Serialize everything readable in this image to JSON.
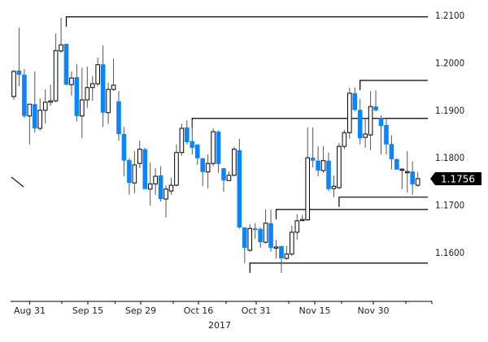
{
  "chart_data": {
    "type": "candlestick",
    "title": "",
    "xlabel": "2017",
    "ylabel": "",
    "ylim": [
      1.153,
      1.213
    ],
    "grid": false,
    "colors": {
      "up_fill": "#ffffff",
      "up_stroke": "#000000",
      "down_fill": "#0a84ff",
      "wick": "#555555",
      "level_line": "#000000",
      "price_tag_bg": "#000000"
    },
    "y_ticks": [
      "1.2100",
      "1.2000",
      "1.1900",
      "1.1800",
      "1.1700",
      "1.1600"
    ],
    "y_tick_values": [
      1.21,
      1.2,
      1.19,
      1.18,
      1.17,
      1.16
    ],
    "x_ticks": [
      "Aug 31",
      "Sep 15",
      "Sep 29",
      "Oct 16",
      "Oct 31",
      "Nov 15",
      "Nov 30"
    ],
    "year_label": "2017",
    "last_price": "1.1756",
    "ohlc": [
      [
        1.1929,
        1.1985,
        1.1922,
        1.1982
      ],
      [
        1.1984,
        1.2074,
        1.1951,
        1.1975
      ],
      [
        1.1975,
        1.1987,
        1.1884,
        1.1888
      ],
      [
        1.1888,
        1.1913,
        1.1828,
        1.1913
      ],
      [
        1.1913,
        1.1982,
        1.1853,
        1.1862
      ],
      [
        1.1862,
        1.1925,
        1.1857,
        1.19
      ],
      [
        1.19,
        1.1944,
        1.1872,
        1.1917
      ],
      [
        1.1917,
        1.1954,
        1.191,
        1.192
      ],
      [
        1.192,
        1.2062,
        1.1917,
        1.2026
      ],
      [
        1.2025,
        1.2095,
        1.2021,
        1.2038
      ],
      [
        1.204,
        1.204,
        1.1953,
        1.1954
      ],
      [
        1.1954,
        1.1982,
        1.1931,
        1.1968
      ],
      [
        1.197,
        1.1997,
        1.1877,
        1.1888
      ],
      [
        1.1888,
        1.199,
        1.1841,
        1.1922
      ],
      [
        1.1922,
        1.1992,
        1.1905,
        1.1948
      ],
      [
        1.1948,
        1.1972,
        1.192,
        1.1956
      ],
      [
        1.1956,
        1.2011,
        1.1951,
        1.1996
      ],
      [
        1.1997,
        1.2037,
        1.1865,
        1.1895
      ],
      [
        1.1895,
        1.1958,
        1.1871,
        1.1944
      ],
      [
        1.1944,
        1.2009,
        1.1941,
        1.1953
      ],
      [
        1.1919,
        1.1941,
        1.1836,
        1.185
      ],
      [
        1.185,
        1.1865,
        1.1761,
        1.1794
      ],
      [
        1.1795,
        1.1799,
        1.1722,
        1.1747
      ],
      [
        1.1747,
        1.1814,
        1.1725,
        1.1785
      ],
      [
        1.1788,
        1.1836,
        1.1778,
        1.1818
      ],
      [
        1.1818,
        1.1821,
        1.1734,
        1.1734
      ],
      [
        1.1734,
        1.179,
        1.1699,
        1.1745
      ],
      [
        1.1745,
        1.1778,
        1.1722,
        1.1761
      ],
      [
        1.1763,
        1.1782,
        1.1708,
        1.1713
      ],
      [
        1.1713,
        1.1742,
        1.1674,
        1.1734
      ],
      [
        1.173,
        1.1758,
        1.1722,
        1.1742
      ],
      [
        1.1742,
        1.1828,
        1.174,
        1.1811
      ],
      [
        1.1811,
        1.1872,
        1.1804,
        1.1862
      ],
      [
        1.1864,
        1.1879,
        1.1828,
        1.1833
      ],
      [
        1.1835,
        1.1879,
        1.1807,
        1.1821
      ],
      [
        1.1828,
        1.1828,
        1.1785,
        1.1799
      ],
      [
        1.1799,
        1.1799,
        1.174,
        1.177
      ],
      [
        1.177,
        1.1807,
        1.1735,
        1.1788
      ],
      [
        1.1788,
        1.1862,
        1.1782,
        1.1855
      ],
      [
        1.1855,
        1.1857,
        1.1768,
        1.1787
      ],
      [
        1.1778,
        1.1778,
        1.1728,
        1.1752
      ],
      [
        1.1752,
        1.1771,
        1.1751,
        1.1763
      ],
      [
        1.1763,
        1.1823,
        1.1761,
        1.1818
      ],
      [
        1.1816,
        1.184,
        1.1651,
        1.1653
      ],
      [
        1.1653,
        1.1653,
        1.1578,
        1.161
      ],
      [
        1.1605,
        1.166,
        1.1602,
        1.1651
      ],
      [
        1.1651,
        1.1662,
        1.1629,
        1.1648
      ],
      [
        1.165,
        1.1653,
        1.161,
        1.1622
      ],
      [
        1.1622,
        1.1691,
        1.1619,
        1.1662
      ],
      [
        1.1662,
        1.1691,
        1.1602,
        1.161
      ],
      [
        1.161,
        1.1627,
        1.1588,
        1.1612
      ],
      [
        1.1614,
        1.1614,
        1.1557,
        1.1588
      ],
      [
        1.1588,
        1.1614,
        1.1585,
        1.1597
      ],
      [
        1.1597,
        1.1657,
        1.1593,
        1.1643
      ],
      [
        1.1643,
        1.1681,
        1.1627,
        1.1667
      ],
      [
        1.1669,
        1.1679,
        1.1667,
        1.167
      ],
      [
        1.1669,
        1.1864,
        1.1667,
        1.18
      ],
      [
        1.18,
        1.1864,
        1.178,
        1.1794
      ],
      [
        1.1794,
        1.1824,
        1.1761,
        1.1773
      ],
      [
        1.1773,
        1.1824,
        1.1768,
        1.1794
      ],
      [
        1.1794,
        1.1811,
        1.173,
        1.1734
      ],
      [
        1.1735,
        1.1763,
        1.1717,
        1.174
      ],
      [
        1.1737,
        1.1831,
        1.1734,
        1.1824
      ],
      [
        1.1824,
        1.1859,
        1.1818,
        1.1853
      ],
      [
        1.1853,
        1.1948,
        1.184,
        1.1936
      ],
      [
        1.1936,
        1.1948,
        1.1898,
        1.1901
      ],
      [
        1.1901,
        1.1924,
        1.1828,
        1.1841
      ],
      [
        1.1843,
        1.1884,
        1.1821,
        1.185
      ],
      [
        1.1848,
        1.1941,
        1.1816,
        1.1908
      ],
      [
        1.1908,
        1.1942,
        1.1898,
        1.19
      ],
      [
        1.1884,
        1.1889,
        1.1807,
        1.1867
      ],
      [
        1.1869,
        1.1881,
        1.1807,
        1.1828
      ],
      [
        1.1829,
        1.1847,
        1.1775,
        1.1797
      ],
      [
        1.1797,
        1.1799,
        1.1775,
        1.1775
      ],
      [
        1.1776,
        1.1778,
        1.1734,
        1.1776
      ],
      [
        1.177,
        1.1814,
        1.1727,
        1.1771
      ],
      [
        1.1771,
        1.1792,
        1.1722,
        1.1744
      ],
      [
        1.1742,
        1.177,
        1.1739,
        1.1756
      ]
    ],
    "levels": [
      {
        "price": 1.2097,
        "from_candle": 10
      },
      {
        "price": 1.1963,
        "from_candle": 66
      },
      {
        "price": 1.1883,
        "from_candle": 34
      },
      {
        "price": 1.1717,
        "from_candle": 62
      },
      {
        "price": 1.1691,
        "from_candle": 50
      },
      {
        "price": 1.1578,
        "from_candle": 45
      }
    ]
  }
}
